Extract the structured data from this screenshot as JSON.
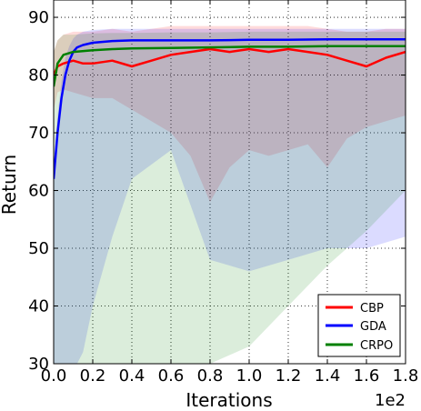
{
  "chart_data": {
    "type": "line",
    "xlabel": "Iterations",
    "ylabel": "Return",
    "x_multiplier_label": "1e2",
    "xlim": [
      0,
      1.8
    ],
    "ylim": [
      30,
      93
    ],
    "x_ticks": [
      "0.0",
      "0.2",
      "0.4",
      "0.6",
      "0.8",
      "1.0",
      "1.2",
      "1.4",
      "1.6",
      "1.8"
    ],
    "y_ticks": [
      "30",
      "40",
      "50",
      "60",
      "70",
      "80",
      "90"
    ],
    "grid": true,
    "legend_position": "bottom-right",
    "series": [
      {
        "name": "CBP",
        "color": "#ff0000",
        "x": [
          0.0,
          0.02,
          0.05,
          0.1,
          0.15,
          0.2,
          0.3,
          0.4,
          0.5,
          0.6,
          0.7,
          0.8,
          0.9,
          1.0,
          1.1,
          1.2,
          1.3,
          1.4,
          1.5,
          1.6,
          1.7,
          1.8
        ],
        "y": [
          80.0,
          81.5,
          82.0,
          82.5,
          82.0,
          82.0,
          82.5,
          81.5,
          82.5,
          83.5,
          84.0,
          84.5,
          84.0,
          84.5,
          84.0,
          84.5,
          84.0,
          83.5,
          82.5,
          81.5,
          83.0,
          84.0
        ],
        "band_upper": [
          84.0,
          86.0,
          87.0,
          87.5,
          87.5,
          87.5,
          88.0,
          87.5,
          88.0,
          88.5,
          88.5,
          88.5,
          88.5,
          88.5,
          88.5,
          88.5,
          88.5,
          88.0,
          87.5,
          87.5,
          88.0,
          88.0
        ],
        "band_lower": [
          74.0,
          77.0,
          77.5,
          77.0,
          76.5,
          76.0,
          76.0,
          74.0,
          72.0,
          70.0,
          66.0,
          58.0,
          64.0,
          67.0,
          66.0,
          67.0,
          68.0,
          64.0,
          69.0,
          71.0,
          72.0,
          73.0
        ]
      },
      {
        "name": "GDA",
        "color": "#0000ff",
        "x": [
          0.0,
          0.02,
          0.04,
          0.06,
          0.08,
          0.1,
          0.12,
          0.15,
          0.2,
          0.3,
          0.4,
          0.6,
          0.8,
          1.0,
          1.2,
          1.4,
          1.6,
          1.8
        ],
        "y": [
          62.0,
          70.0,
          76.0,
          80.0,
          82.5,
          84.0,
          84.8,
          85.2,
          85.6,
          85.9,
          86.0,
          86.0,
          86.0,
          86.1,
          86.1,
          86.2,
          86.2,
          86.2
        ],
        "band_upper": [
          64.0,
          73.0,
          79.0,
          83.0,
          85.0,
          86.3,
          87.0,
          87.5,
          87.8,
          88.0,
          88.0,
          88.0,
          88.0,
          88.0,
          88.0,
          88.0,
          88.0,
          88.0
        ],
        "band_lower": [
          30.0,
          30.0,
          30.0,
          30.0,
          30.0,
          30.0,
          30.0,
          32.0,
          40.0,
          52.0,
          62.0,
          67.0,
          48.0,
          46.0,
          48.0,
          50.0,
          50.0,
          52.0
        ]
      },
      {
        "name": "CRPO",
        "color": "#008000",
        "x": [
          0.0,
          0.02,
          0.05,
          0.1,
          0.2,
          0.3,
          0.4,
          0.6,
          0.8,
          1.0,
          1.2,
          1.4,
          1.6,
          1.8
        ],
        "y": [
          78.0,
          82.0,
          83.5,
          84.0,
          84.3,
          84.5,
          84.6,
          84.7,
          84.8,
          84.9,
          84.9,
          85.0,
          85.0,
          85.0
        ],
        "band_upper": [
          84.0,
          86.0,
          87.0,
          87.0,
          87.2,
          87.3,
          87.3,
          87.4,
          87.4,
          87.5,
          87.5,
          87.5,
          87.5,
          87.5
        ],
        "band_lower": [
          30.0,
          30.0,
          30.0,
          30.0,
          30.0,
          30.0,
          30.0,
          30.0,
          30.0,
          33.0,
          40.0,
          47.0,
          53.0,
          60.0
        ]
      }
    ]
  }
}
